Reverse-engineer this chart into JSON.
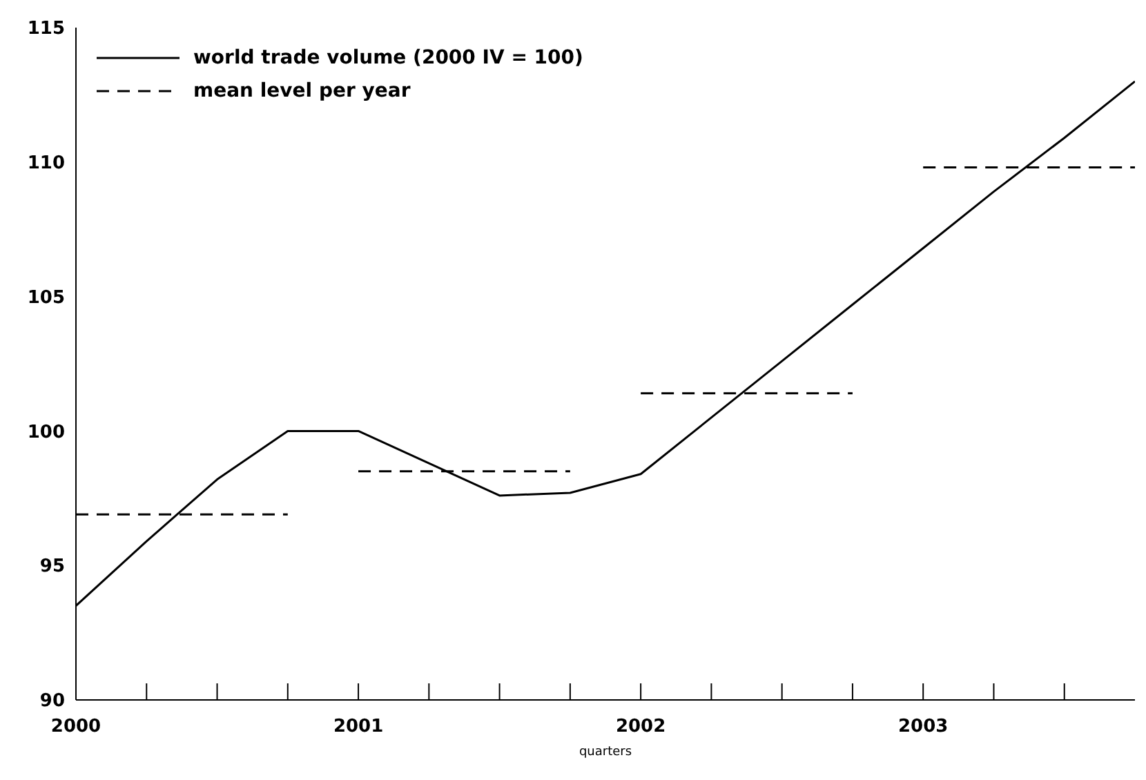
{
  "chart_data": {
    "type": "line",
    "xlabel": "quarters",
    "xlim": [
      2000,
      2003.75
    ],
    "xticks": [
      {
        "value": 2000,
        "label": "2000"
      },
      {
        "value": 2000.25,
        "label": null
      },
      {
        "value": 2000.5,
        "label": null
      },
      {
        "value": 2000.75,
        "label": null
      },
      {
        "value": 2001,
        "label": "2001"
      },
      {
        "value": 2001.25,
        "label": null
      },
      {
        "value": 2001.5,
        "label": null
      },
      {
        "value": 2001.75,
        "label": null
      },
      {
        "value": 2002,
        "label": "2002"
      },
      {
        "value": 2002.25,
        "label": null
      },
      {
        "value": 2002.5,
        "label": null
      },
      {
        "value": 2002.75,
        "label": null
      },
      {
        "value": 2003,
        "label": "2003"
      },
      {
        "value": 2003.25,
        "label": null
      },
      {
        "value": 2003.5,
        "label": null
      }
    ],
    "ylim": [
      90,
      115
    ],
    "yticks": [
      90,
      95,
      100,
      105,
      110,
      115
    ],
    "grid": false,
    "legend": "top left",
    "marker": "none",
    "series": [
      {
        "name": "world trade volume (2000 IV = 100)",
        "color": "#000000",
        "line_style": "solid",
        "x": [
          2000,
          2000.25,
          2000.5,
          2000.75,
          2001,
          2001.25,
          2001.5,
          2001.75,
          2002,
          2002.25,
          2002.5,
          2002.75,
          2003,
          2003.25,
          2003.5,
          2003.75
        ],
        "values": [
          93.5,
          95.9,
          98.2,
          100,
          100,
          98.8,
          97.6,
          97.7,
          98.4,
          100.5,
          102.6,
          104.7,
          106.8,
          108.9,
          110.9,
          113
        ]
      },
      {
        "name": "mean level per year",
        "color": "#000000",
        "line_style": "dashed",
        "x": [
          2000,
          2000.75,
          2000.875,
          2001,
          2001.75,
          2001.875,
          2002,
          2002.75,
          2002.875,
          2003,
          2003.75
        ],
        "values": [
          96.9,
          96.9,
          null,
          98.5,
          98.5,
          null,
          101.4,
          101.4,
          null,
          109.8,
          109.8
        ]
      }
    ]
  }
}
